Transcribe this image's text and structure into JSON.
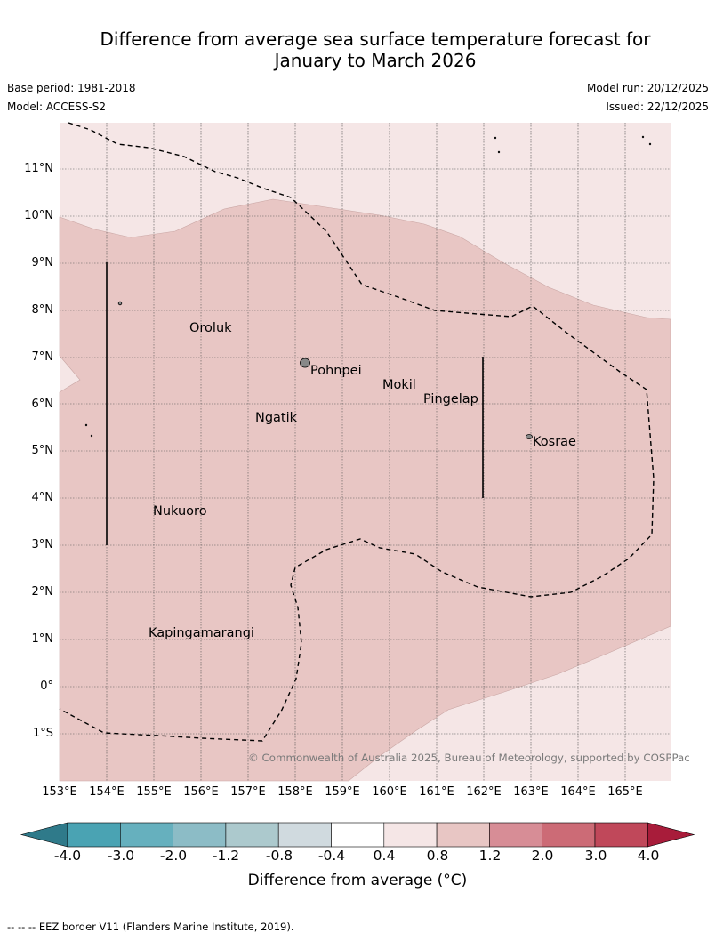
{
  "title_line1": "Difference from average sea surface temperature forecast for",
  "title_line2": "January to March 2026",
  "base_period": "Base period: 1981-2018",
  "model": "Model: ACCESS-S2",
  "model_run": "Model run: 20/12/2025",
  "issued": "Issued: 22/12/2025",
  "lat_labels": [
    "11°N",
    "10°N",
    "9°N",
    "8°N",
    "7°N",
    "6°N",
    "5°N",
    "4°N",
    "3°N",
    "2°N",
    "1°N",
    "0°",
    "1°S"
  ],
  "lon_labels": [
    "153°E",
    "154°E",
    "155°E",
    "156°E",
    "157°E",
    "158°E",
    "159°E",
    "160°E",
    "161°E",
    "162°E",
    "163°E",
    "164°E",
    "165°E"
  ],
  "places": {
    "oroluk": "Oroluk",
    "pohnpei": "Pohnpei",
    "mokil": "Mokil",
    "pingelap": "Pingelap",
    "ngatik": "Ngatik",
    "kosrae": "Kosrae",
    "nukuoro": "Nukuoro",
    "kapingamarangi": "Kapingamarangi"
  },
  "copyright": "© Commonwealth of Australia 2025, Bureau of Meteorology, supported by COSPPac",
  "colorbar": {
    "ticks": [
      "-4.0",
      "-3.0",
      "-2.0",
      "-1.2",
      "-0.8",
      "-0.4",
      "0.4",
      "0.8",
      "1.2",
      "2.0",
      "3.0",
      "4.0"
    ],
    "label": "Difference from average (°C)",
    "colors": [
      "#2f7a8a",
      "#4aa3b3",
      "#66b0be",
      "#8cbcc6",
      "#acc9cd",
      "#d0dadf",
      "#ffffff",
      "#f5e6e6",
      "#e8c6c4",
      "#d78d96",
      "#cc6b76",
      "#c0485a",
      "#a81c3a"
    ]
  },
  "footnote": "-- -- -- EEZ border V11 (Flanders Marine Institute, 2019).",
  "colors": {
    "anom_04_08": "#f5e6e6",
    "anom_08_12": "#e8c6c4",
    "grid": "#555555"
  }
}
